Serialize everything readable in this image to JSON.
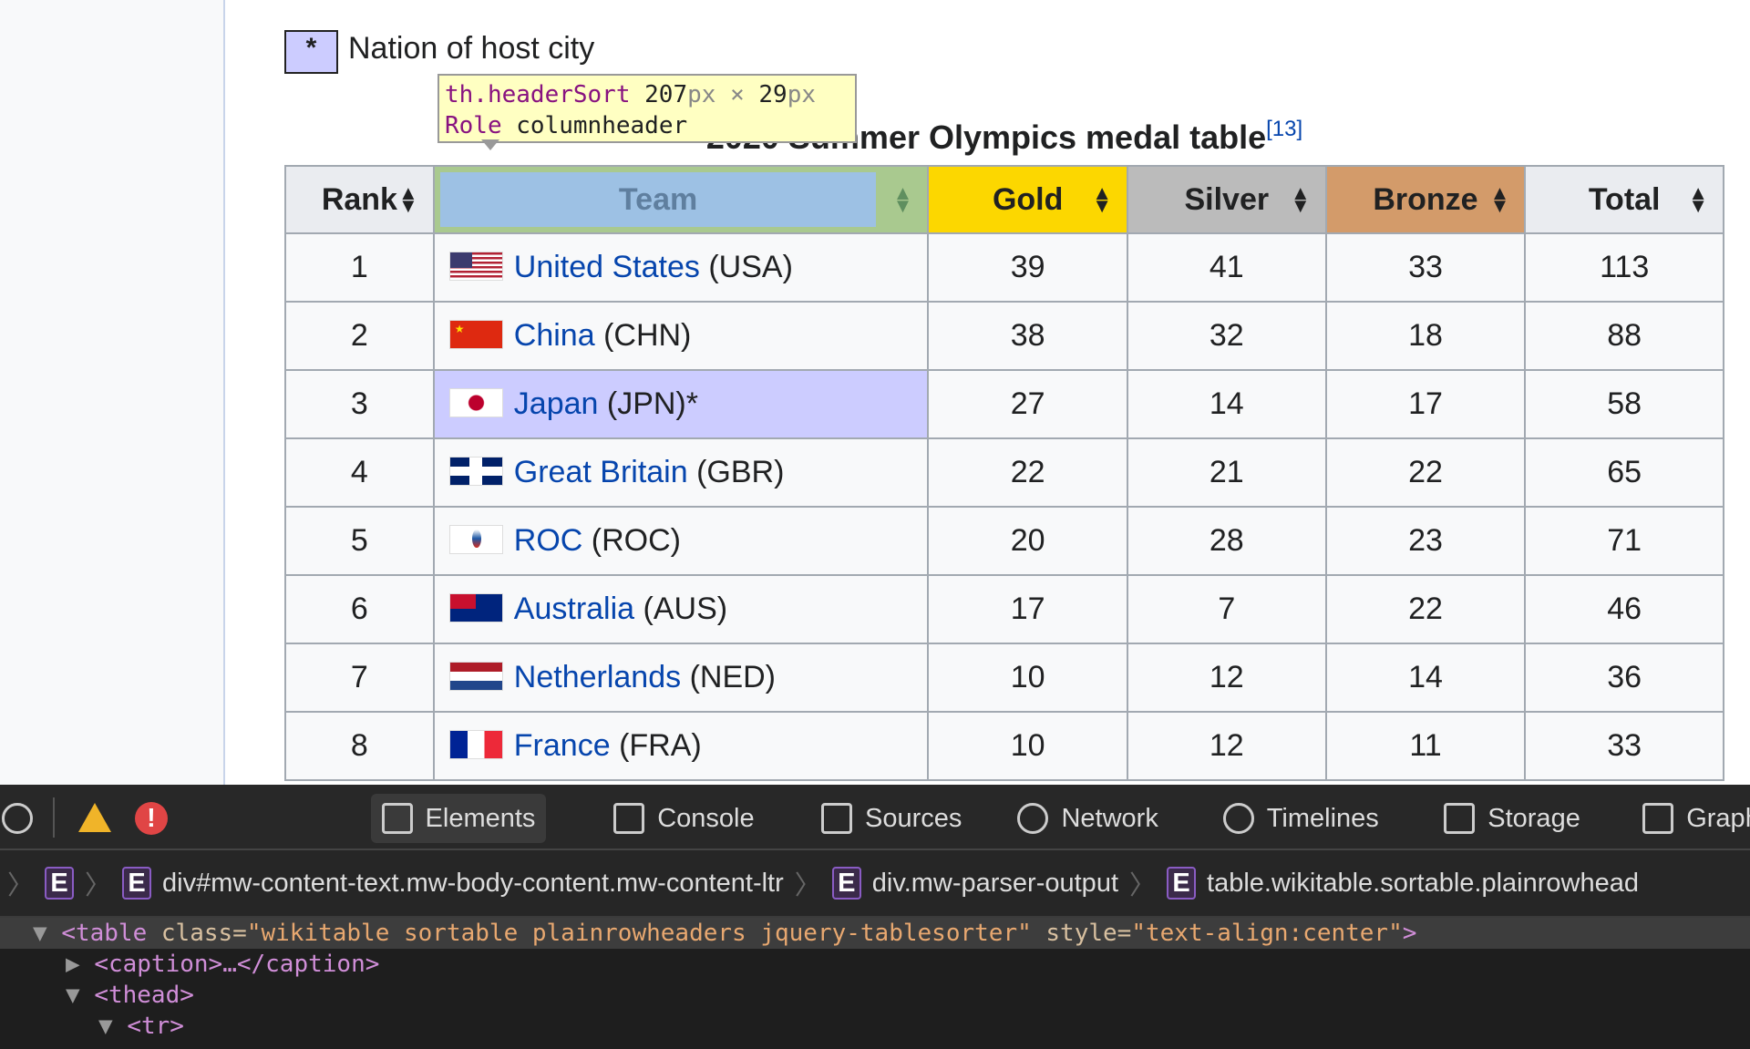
{
  "legend": {
    "symbol": "*",
    "text": "Nation of host city",
    "color": "#ccccff"
  },
  "tooltip": {
    "selector": "th.headerSort",
    "width": "207",
    "height": "29",
    "unit": "px",
    "times": "×",
    "role_label": "Role",
    "role": "columnheader"
  },
  "caption": {
    "title": "2020 Summer Olympics medal table",
    "ref": "[13]"
  },
  "table": {
    "headers": [
      "Rank",
      "Team",
      "Gold",
      "Silver",
      "Bronze",
      "Total"
    ],
    "header_colors": {
      "gold": "#fcd700",
      "silver": "#bbbbbb",
      "bronze": "#d39b6a"
    },
    "sort_icon": "sort-arrows-icon",
    "rows": [
      {
        "rank": "1",
        "country": "United States",
        "code": "(USA)",
        "gold": "39",
        "silver": "41",
        "bronze": "33",
        "total": "113",
        "flag": "usa"
      },
      {
        "rank": "2",
        "country": "China",
        "code": "(CHN)",
        "gold": "38",
        "silver": "32",
        "bronze": "18",
        "total": "88",
        "flag": "chn"
      },
      {
        "rank": "3",
        "country": "Japan",
        "code": "(JPN)*",
        "gold": "27",
        "silver": "14",
        "bronze": "17",
        "total": "58",
        "flag": "jpn",
        "host": true
      },
      {
        "rank": "4",
        "country": "Great Britain",
        "code": "(GBR)",
        "gold": "22",
        "silver": "21",
        "bronze": "22",
        "total": "65",
        "flag": "gbr"
      },
      {
        "rank": "5",
        "country": "ROC",
        "code": "(ROC)",
        "gold": "20",
        "silver": "28",
        "bronze": "23",
        "total": "71",
        "flag": "roc"
      },
      {
        "rank": "6",
        "country": "Australia",
        "code": "(AUS)",
        "gold": "17",
        "silver": "7",
        "bronze": "22",
        "total": "46",
        "flag": "aus"
      },
      {
        "rank": "7",
        "country": "Netherlands",
        "code": "(NED)",
        "gold": "10",
        "silver": "12",
        "bronze": "14",
        "total": "36",
        "flag": "ned"
      },
      {
        "rank": "8",
        "country": "France",
        "code": "(FRA)",
        "gold": "10",
        "silver": "12",
        "bronze": "11",
        "total": "33",
        "flag": "fra"
      }
    ]
  },
  "devtools": {
    "tabs": [
      "Elements",
      "Console",
      "Sources",
      "Network",
      "Timelines",
      "Storage",
      "Graph"
    ],
    "breadcrumb": [
      "div#mw-content-text.mw-body-content.mw-content-ltr",
      "div.mw-parser-output",
      "table.wikitable.sortable.plainrowhead"
    ],
    "element_badge": "E",
    "dom": {
      "table_open": "<table ",
      "class_attr": "class=",
      "class_val": "\"wikitable sortable plainrowheaders jquery-tablesorter\"",
      "style_attr": " style=",
      "style_val": "\"text-align:center\"",
      "close": ">",
      "caption": "<caption>…</caption>",
      "thead": "<thead>",
      "tr": "<tr>"
    }
  }
}
